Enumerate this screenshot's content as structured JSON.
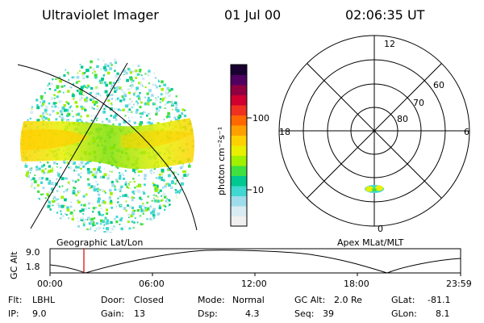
{
  "header": {
    "instrument": "Ultraviolet Imager",
    "date": "01 Jul 00",
    "time": "02:06:35 UT"
  },
  "colorbar": {
    "unit_label": "photon cm⁻²s⁻¹",
    "ticks": [
      "100",
      "10"
    ],
    "colors": [
      "#f0f0f0",
      "#d8ecf2",
      "#9edcec",
      "#40d8d0",
      "#00c890",
      "#40e040",
      "#a0f000",
      "#e8f000",
      "#ffd000",
      "#ffa000",
      "#ff6800",
      "#f03020",
      "#d00030",
      "#900040",
      "#500060",
      "#1a0030"
    ]
  },
  "geo_map": {
    "label": "Geographic Lat/Lon"
  },
  "polar_map": {
    "label": "Apex MLat/MLT",
    "mlt_labels": {
      "top": "12",
      "left": "18",
      "right": "6",
      "bottom": "0"
    },
    "lat_labels": [
      "60",
      "70",
      "80"
    ]
  },
  "altitude_plot": {
    "ylabel": "GC Alt",
    "ytop": "9.0",
    "ybottom": "1.8",
    "xticks": [
      "00:00",
      "06:00",
      "12:00",
      "18:00",
      "23:59"
    ]
  },
  "info": {
    "flt_label": "Flt:",
    "flt_value": "LBHL",
    "ip_label": "IP:",
    "ip_value": "9.0",
    "door_label": "Door:",
    "door_value": "Closed",
    "gain_label": "Gain:",
    "gain_value": "13",
    "mode_label": "Mode:",
    "mode_value": "Normal",
    "dsp_label": "Dsp:",
    "dsp_value": "4.3",
    "gcalt_label": "GC Alt:",
    "gcalt_value": "2.0 Re",
    "seq_label": "Seq:",
    "seq_value": "39",
    "glat_label": "GLat:",
    "glat_value": "-81.1",
    "glon_label": "GLon:",
    "glon_value": "8.1"
  }
}
